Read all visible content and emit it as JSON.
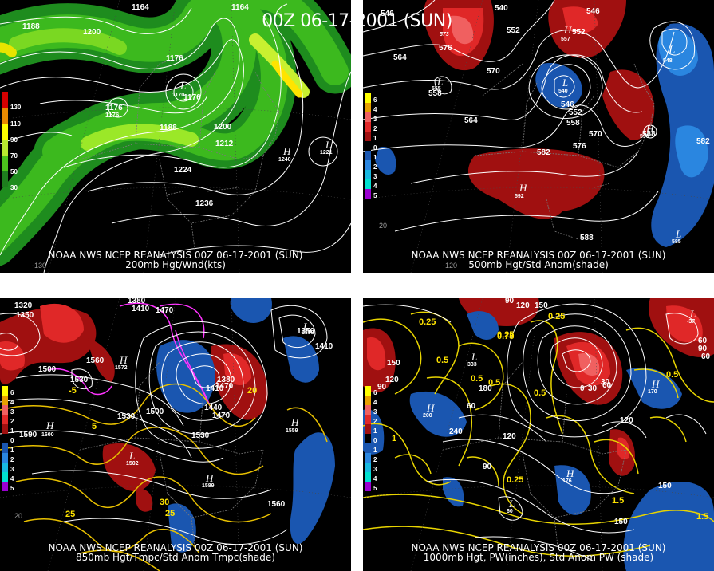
{
  "main_title": "00Z 06-17-2001 (SUN)",
  "panels": [
    {
      "caption_line1": "NOAA NWS NCEP REANALYSIS 00Z 06-17-2001 (SUN)",
      "caption_line2": "200mb Hgt/Wnd(kts)",
      "legend": [
        {
          "label": "130",
          "color": "#d40000"
        },
        {
          "label": "110",
          "color": "#e88a00"
        },
        {
          "label": "90",
          "color": "#ffff00"
        },
        {
          "label": "70",
          "color": "#b8e830"
        },
        {
          "label": "50",
          "color": "#4cc21c"
        },
        {
          "label": "30",
          "color": "#1e7d1e"
        }
      ],
      "contour_labels": [
        "1164",
        "1164",
        "1188",
        "1200",
        "1176",
        "1176",
        "1176",
        "1176",
        "1188",
        "1200",
        "1212",
        "1224",
        "1236"
      ],
      "center_labels": [
        {
          "letter": "L",
          "value": "1170"
        },
        {
          "letter": "H",
          "value": "1240"
        },
        {
          "letter": "L",
          "value": "1221"
        }
      ],
      "lon_labels": [
        "-130"
      ]
    },
    {
      "caption_line1": "NOAA NWS NCEP REANALYSIS 00Z 06-17-2001 (SUN)",
      "caption_line2": "500mb Hgt/Std Anom(shade)",
      "legend": [
        {
          "label": "6",
          "color": "#ffff00"
        },
        {
          "label": "4",
          "color": "#e8a000"
        },
        {
          "label": "3",
          "color": "#f06060"
        },
        {
          "label": "2",
          "color": "#e02828"
        },
        {
          "label": "1",
          "color": "#a01010"
        },
        {
          "label": "0",
          "color": "#000000"
        },
        {
          "label": "1",
          "color": "#1a56b0"
        },
        {
          "label": "2",
          "color": "#2a86e0"
        },
        {
          "label": "3",
          "color": "#18b8e0"
        },
        {
          "label": "4",
          "color": "#00e0d0"
        },
        {
          "label": "5",
          "color": "#9a00d0"
        }
      ],
      "contour_labels": [
        "546",
        "540",
        "546",
        "552",
        "552",
        "576",
        "564",
        "570",
        "558",
        "564",
        "546",
        "552",
        "558",
        "570",
        "576",
        "582",
        "588",
        "582",
        "588",
        "588"
      ],
      "center_labels": [
        {
          "letter": "",
          "value": "573"
        },
        {
          "letter": "H",
          "value": "557"
        },
        {
          "letter": "L",
          "value": "548"
        },
        {
          "letter": "L",
          "value": "555"
        },
        {
          "letter": "L",
          "value": "540"
        },
        {
          "letter": "H",
          "value": "592"
        },
        {
          "letter": "H",
          "value": "590"
        },
        {
          "letter": "L",
          "value": "585"
        }
      ],
      "lon_labels": [
        "20",
        "-120"
      ]
    },
    {
      "caption_line1": "NOAA NWS NCEP REANALYSIS 00Z 06-17-2001 (SUN)",
      "caption_line2": "850mb Hgt/Tmpc/Std Anom Tmpc(shade)",
      "legend": [
        {
          "label": "6",
          "color": "#ffff00"
        },
        {
          "label": "4",
          "color": "#e8a000"
        },
        {
          "label": "3",
          "color": "#f06060"
        },
        {
          "label": "2",
          "color": "#e02828"
        },
        {
          "label": "1",
          "color": "#a01010"
        },
        {
          "label": "0",
          "color": "#000000"
        },
        {
          "label": "1",
          "color": "#1a56b0"
        },
        {
          "label": "2",
          "color": "#2a86e0"
        },
        {
          "label": "3",
          "color": "#18b8e0"
        },
        {
          "label": "4",
          "color": "#00e0d0"
        },
        {
          "label": "5",
          "color": "#9a00d0"
        }
      ],
      "contour_labels": [
        "1320",
        "1350",
        "1380",
        "1410",
        "1470",
        "1530",
        "1560",
        "1590",
        "1500",
        "1530",
        "1500",
        "1410",
        "1440",
        "1470",
        "1530",
        "1560",
        "1350",
        "1410",
        "1470",
        "1380"
      ],
      "temp_labels": [
        "-5",
        "5",
        "25",
        "30",
        "25",
        "20"
      ],
      "center_labels": [
        {
          "letter": "H",
          "value": "1572"
        },
        {
          "letter": "H",
          "value": "1600"
        },
        {
          "letter": "L",
          "value": "1502"
        },
        {
          "letter": "H",
          "value": "1559"
        },
        {
          "letter": "H",
          "value": "1589"
        },
        {
          "letter": "L",
          "value": "1358"
        }
      ],
      "lon_labels": [
        "20"
      ]
    },
    {
      "caption_line1": "NOAA NWS NCEP REANALYSIS 00Z 06-17-2001 (SUN)",
      "caption_line2": "1000mb Hgt, PW(inches), Std Anom PW (shade)",
      "legend": [
        {
          "label": "6",
          "color": "#ffff00"
        },
        {
          "label": "4",
          "color": "#e8a000"
        },
        {
          "label": "3",
          "color": "#f06060"
        },
        {
          "label": "2",
          "color": "#e02828"
        },
        {
          "label": "1",
          "color": "#a01010"
        },
        {
          "label": "0",
          "color": "#000000"
        },
        {
          "label": "1",
          "color": "#1a56b0"
        },
        {
          "label": "2",
          "color": "#2a86e0"
        },
        {
          "label": "3",
          "color": "#18b8e0"
        },
        {
          "label": "4",
          "color": "#00e0d0"
        },
        {
          "label": "5",
          "color": "#9a00d0"
        }
      ],
      "contour_labels": [
        "90",
        "120",
        "150",
        "60",
        "90",
        "0",
        "30",
        "60",
        "90",
        "120",
        "150",
        "180",
        "240",
        "120",
        "90",
        "60",
        "150",
        "150",
        "120",
        "30",
        "60"
      ],
      "pw_labels": [
        "0.25",
        "0.5",
        "0.75",
        "0.25",
        "0.5",
        "0.5",
        "0.5",
        "0.25",
        "1",
        "1.5",
        "1.5",
        "0.5",
        "0.25"
      ],
      "center_labels": [
        {
          "letter": "L",
          "value": "333"
        },
        {
          "letter": "H",
          "value": "200"
        },
        {
          "letter": "H",
          "value": "170"
        },
        {
          "letter": "H",
          "value": "176"
        },
        {
          "letter": "L",
          "value": "60"
        },
        {
          "letter": "L",
          "value": "-37"
        }
      ],
      "lon_labels": []
    }
  ]
}
